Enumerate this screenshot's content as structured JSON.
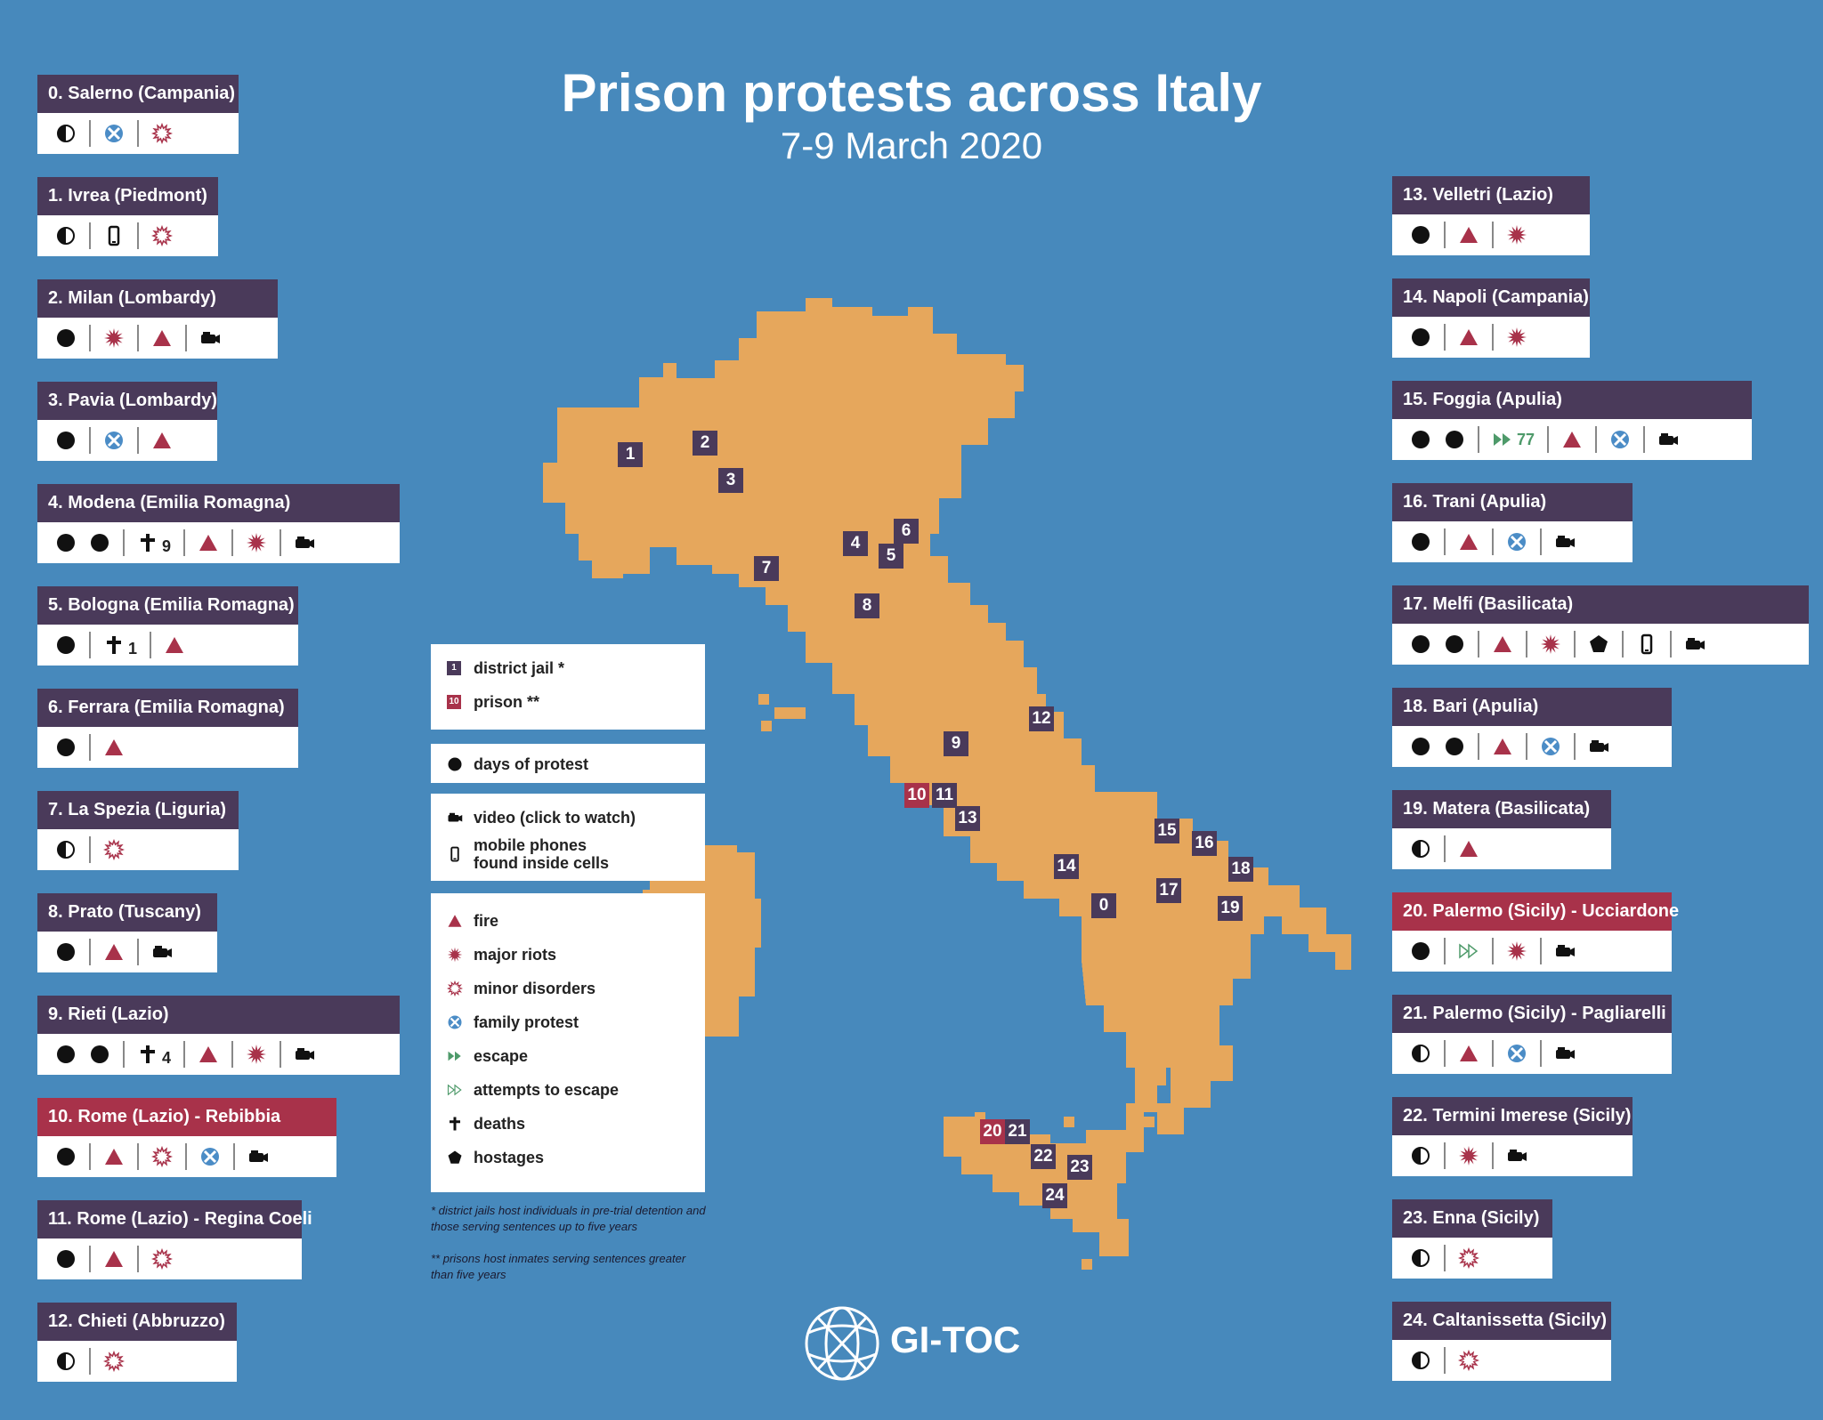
{
  "title": "Prison protests across Italy",
  "subtitle": "7-9 March 2020",
  "logo": "GI-TOC",
  "colors": {
    "background": "#4789bc",
    "map": "#e6a75c",
    "district_jail": "#4a3a5a",
    "prison": "#a8324a",
    "fire": "#a8324a",
    "family": "#4b8cc6",
    "escape": "#4e9a6a"
  },
  "facilities": [
    {
      "name": "0. Salerno (Campania)",
      "type": "district_jail",
      "icons": [
        [
          "half"
        ],
        [
          "family"
        ],
        [
          "minor"
        ]
      ]
    },
    {
      "name": "1. Ivrea (Piedmont)",
      "type": "district_jail",
      "icons": [
        [
          "half"
        ],
        [
          "phone"
        ],
        [
          "minor"
        ]
      ]
    },
    {
      "name": "2. Milan (Lombardy)",
      "type": "district_jail",
      "icons": [
        [
          "dot"
        ],
        [
          "major"
        ],
        [
          "fire"
        ],
        [
          "video"
        ]
      ]
    },
    {
      "name": "3. Pavia (Lombardy)",
      "type": "district_jail",
      "icons": [
        [
          "dot"
        ],
        [
          "family"
        ],
        [
          "fire"
        ]
      ]
    },
    {
      "name": "4. Modena (Emilia Romagna)",
      "type": "district_jail",
      "icons": [
        [
          "dot",
          "dot"
        ],
        [
          "death"
        ],
        [
          "fire"
        ],
        [
          "major"
        ],
        [
          "video"
        ]
      ],
      "deaths": "9"
    },
    {
      "name": "5. Bologna (Emilia Romagna)",
      "type": "district_jail",
      "icons": [
        [
          "dot"
        ],
        [
          "death"
        ],
        [
          "fire"
        ]
      ],
      "deaths": "1"
    },
    {
      "name": "6. Ferrara (Emilia Romagna)",
      "type": "district_jail",
      "icons": [
        [
          "dot"
        ],
        [
          "fire"
        ]
      ]
    },
    {
      "name": "7. La Spezia (Liguria)",
      "type": "district_jail",
      "icons": [
        [
          "half"
        ],
        [
          "minor"
        ]
      ]
    },
    {
      "name": "8. Prato (Tuscany)",
      "type": "district_jail",
      "icons": [
        [
          "dot"
        ],
        [
          "fire"
        ],
        [
          "video"
        ]
      ]
    },
    {
      "name": "9. Rieti (Lazio)",
      "type": "district_jail",
      "icons": [
        [
          "dot",
          "dot"
        ],
        [
          "death"
        ],
        [
          "fire"
        ],
        [
          "major"
        ],
        [
          "video"
        ]
      ],
      "deaths": "4"
    },
    {
      "name": "10. Rome (Lazio) - Rebibbia",
      "type": "prison",
      "icons": [
        [
          "dot"
        ],
        [
          "fire"
        ],
        [
          "minor"
        ],
        [
          "family"
        ],
        [
          "video"
        ]
      ]
    },
    {
      "name": "11. Rome (Lazio) - Regina Coeli",
      "type": "district_jail",
      "icons": [
        [
          "dot"
        ],
        [
          "fire"
        ],
        [
          "minor"
        ]
      ]
    },
    {
      "name": "12. Chieti (Abbruzzo)",
      "type": "district_jail",
      "icons": [
        [
          "half"
        ],
        [
          "minor"
        ]
      ]
    },
    {
      "name": "13. Velletri (Lazio)",
      "type": "district_jail",
      "icons": [
        [
          "dot"
        ],
        [
          "fire"
        ],
        [
          "major"
        ]
      ]
    },
    {
      "name": "14. Napoli (Campania)",
      "type": "district_jail",
      "icons": [
        [
          "dot"
        ],
        [
          "fire"
        ],
        [
          "major"
        ]
      ]
    },
    {
      "name": "15. Foggia (Apulia)",
      "type": "district_jail",
      "icons": [
        [
          "dot",
          "dot"
        ],
        [
          "escape"
        ],
        [
          "fire"
        ],
        [
          "family"
        ],
        [
          "video"
        ]
      ],
      "escapes": "77"
    },
    {
      "name": "16. Trani (Apulia)",
      "type": "district_jail",
      "icons": [
        [
          "dot"
        ],
        [
          "fire"
        ],
        [
          "family"
        ],
        [
          "video"
        ]
      ]
    },
    {
      "name": "17. Melfi (Basilicata)",
      "type": "district_jail",
      "icons": [
        [
          "dot",
          "dot"
        ],
        [
          "fire"
        ],
        [
          "major"
        ],
        [
          "hostage"
        ],
        [
          "phone"
        ],
        [
          "video"
        ]
      ]
    },
    {
      "name": "18. Bari (Apulia)",
      "type": "district_jail",
      "icons": [
        [
          "dot",
          "dot"
        ],
        [
          "fire"
        ],
        [
          "family"
        ],
        [
          "video"
        ]
      ]
    },
    {
      "name": "19. Matera (Basilicata)",
      "type": "district_jail",
      "icons": [
        [
          "half"
        ],
        [
          "fire"
        ]
      ]
    },
    {
      "name": "20. Palermo (Sicily) - Ucciardone",
      "type": "prison",
      "icons": [
        [
          "dot"
        ],
        [
          "attempt"
        ],
        [
          "major"
        ],
        [
          "video"
        ]
      ]
    },
    {
      "name": "21. Palermo (Sicily) - Pagliarelli",
      "type": "district_jail",
      "icons": [
        [
          "half"
        ],
        [
          "fire"
        ],
        [
          "family"
        ],
        [
          "video"
        ]
      ]
    },
    {
      "name": "22. Termini Imerese (Sicily)",
      "type": "district_jail",
      "icons": [
        [
          "half"
        ],
        [
          "major"
        ],
        [
          "video"
        ]
      ]
    },
    {
      "name": "23. Enna (Sicily)",
      "type": "district_jail",
      "icons": [
        [
          "half"
        ],
        [
          "minor"
        ]
      ]
    },
    {
      "name": "24. Caltanissetta (Sicily)",
      "type": "district_jail",
      "icons": [
        [
          "half"
        ],
        [
          "minor"
        ]
      ]
    }
  ],
  "map_markers": [
    {
      "label": "0",
      "type": "district_jail"
    },
    {
      "label": "1",
      "type": "district_jail"
    },
    {
      "label": "2",
      "type": "district_jail"
    },
    {
      "label": "3",
      "type": "district_jail"
    },
    {
      "label": "4",
      "type": "district_jail"
    },
    {
      "label": "5",
      "type": "district_jail"
    },
    {
      "label": "6",
      "type": "district_jail"
    },
    {
      "label": "7",
      "type": "district_jail"
    },
    {
      "label": "8",
      "type": "district_jail"
    },
    {
      "label": "9",
      "type": "district_jail"
    },
    {
      "label": "10",
      "type": "prison"
    },
    {
      "label": "11",
      "type": "district_jail"
    },
    {
      "label": "12",
      "type": "district_jail"
    },
    {
      "label": "13",
      "type": "district_jail"
    },
    {
      "label": "14",
      "type": "district_jail"
    },
    {
      "label": "15",
      "type": "district_jail"
    },
    {
      "label": "16",
      "type": "district_jail"
    },
    {
      "label": "17",
      "type": "district_jail"
    },
    {
      "label": "18",
      "type": "district_jail"
    },
    {
      "label": "19",
      "type": "district_jail"
    },
    {
      "label": "20",
      "type": "prison"
    },
    {
      "label": "21",
      "type": "district_jail"
    },
    {
      "label": "22",
      "type": "district_jail"
    },
    {
      "label": "23",
      "type": "district_jail"
    },
    {
      "label": "24",
      "type": "district_jail"
    }
  ],
  "legend": {
    "groups": [
      [
        {
          "icon": "jail-sample",
          "label": "district jail *"
        },
        {
          "icon": "prison-sample",
          "label": "prison **"
        }
      ],
      [
        {
          "icon": "dot",
          "label": "days of protest"
        }
      ],
      [
        {
          "icon": "video",
          "label": "video (click to watch)"
        },
        {
          "icon": "phone",
          "label": "mobile phones"
        }
      ],
      [
        {
          "icon": "fire",
          "label": "fire"
        },
        {
          "icon": "major",
          "label": "major riots"
        },
        {
          "icon": "minor",
          "label": "minor disorders"
        },
        {
          "icon": "family",
          "label": "family protest"
        },
        {
          "icon": "escape",
          "label": "escape"
        },
        {
          "icon": "attempt",
          "label": "attempts to escape"
        },
        {
          "icon": "death",
          "label": "deaths"
        },
        {
          "icon": "hostage",
          "label": "hostages"
        }
      ]
    ],
    "phones_line2": "found inside cells",
    "sample_jail_num": "1",
    "sample_prison_num": "10"
  },
  "notes": [
    "* district jails host individuals in pre-trial detention and those serving sentences up to five years",
    "** prisons host inmates serving sentences greater than five years"
  ]
}
